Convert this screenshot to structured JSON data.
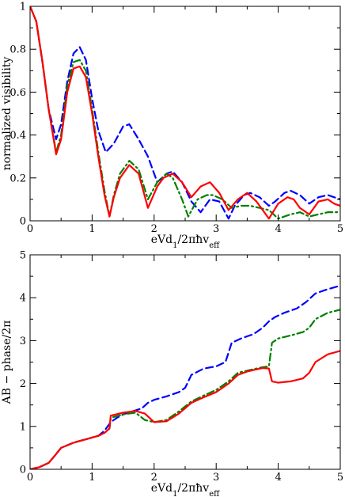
{
  "chart_data": [
    {
      "type": "line",
      "xlabel": "eVd₁/2πħvₑff",
      "ylabel": "normalized visibility",
      "xlim": [
        0,
        5
      ],
      "ylim": [
        0,
        1
      ],
      "xticks": [
        0,
        1,
        2,
        3,
        4,
        5
      ],
      "yticks": [
        0,
        0.2,
        0.4,
        0.6,
        0.8,
        1
      ],
      "ytick_labels": [
        "0",
        "0.2",
        "0.4",
        "0.6",
        "0.8",
        "1"
      ],
      "grid": false,
      "legend": "none",
      "series": [
        {
          "color": "#0000ff",
          "style": "dashed",
          "x": [
            0,
            0.1,
            0.2,
            0.3,
            0.42,
            0.5,
            0.6,
            0.7,
            0.8,
            0.9,
            1.0,
            1.1,
            1.22,
            1.35,
            1.5,
            1.6,
            1.75,
            1.9,
            2.05,
            2.2,
            2.3,
            2.45,
            2.6,
            2.75,
            2.9,
            3.05,
            3.2,
            3.3,
            3.45,
            3.55,
            3.7,
            3.85,
            3.95,
            4.1,
            4.2,
            4.35,
            4.5,
            4.65,
            4.8,
            4.9,
            5.0
          ],
          "y": [
            1.0,
            0.93,
            0.74,
            0.52,
            0.38,
            0.45,
            0.65,
            0.78,
            0.81,
            0.75,
            0.57,
            0.42,
            0.32,
            0.36,
            0.44,
            0.45,
            0.38,
            0.3,
            0.18,
            0.22,
            0.23,
            0.18,
            0.09,
            0.04,
            0.1,
            0.09,
            0.01,
            0.07,
            0.12,
            0.13,
            0.11,
            0.07,
            0.09,
            0.13,
            0.14,
            0.12,
            0.08,
            0.11,
            0.12,
            0.11,
            0.1
          ]
        },
        {
          "color": "#008000",
          "style": "dashdot",
          "x": [
            0,
            0.1,
            0.2,
            0.3,
            0.42,
            0.5,
            0.6,
            0.7,
            0.8,
            0.9,
            1.0,
            1.1,
            1.2,
            1.28,
            1.35,
            1.45,
            1.6,
            1.75,
            1.9,
            2.05,
            2.2,
            2.3,
            2.45,
            2.55,
            2.7,
            2.85,
            2.95,
            3.1,
            3.25,
            3.4,
            3.55,
            3.7,
            3.85,
            4.0,
            4.2,
            4.35,
            4.5,
            4.65,
            4.8,
            5.0
          ],
          "y": [
            1.0,
            0.93,
            0.74,
            0.52,
            0.32,
            0.4,
            0.63,
            0.74,
            0.75,
            0.7,
            0.52,
            0.32,
            0.14,
            0.02,
            0.12,
            0.22,
            0.28,
            0.24,
            0.1,
            0.18,
            0.22,
            0.2,
            0.1,
            0.02,
            0.1,
            0.12,
            0.12,
            0.1,
            0.06,
            0.07,
            0.07,
            0.06,
            0.05,
            0.01,
            0.03,
            0.04,
            0.02,
            0.03,
            0.04,
            0.04
          ]
        },
        {
          "color": "#ff0000",
          "style": "solid",
          "x": [
            0,
            0.1,
            0.2,
            0.3,
            0.42,
            0.5,
            0.6,
            0.7,
            0.8,
            0.9,
            1.0,
            1.1,
            1.2,
            1.28,
            1.35,
            1.45,
            1.6,
            1.75,
            1.9,
            2.05,
            2.15,
            2.3,
            2.45,
            2.6,
            2.75,
            2.9,
            3.05,
            3.2,
            3.35,
            3.5,
            3.65,
            3.85,
            4.0,
            4.15,
            4.25,
            4.35,
            4.5,
            4.65,
            4.8,
            4.9,
            5.0
          ],
          "y": [
            1.0,
            0.93,
            0.74,
            0.52,
            0.31,
            0.38,
            0.6,
            0.71,
            0.72,
            0.67,
            0.5,
            0.3,
            0.12,
            0.02,
            0.11,
            0.2,
            0.26,
            0.22,
            0.06,
            0.16,
            0.2,
            0.22,
            0.18,
            0.11,
            0.16,
            0.18,
            0.13,
            0.05,
            0.1,
            0.13,
            0.09,
            0.01,
            0.08,
            0.11,
            0.1,
            0.06,
            0.03,
            0.09,
            0.1,
            0.08,
            0.07
          ]
        }
      ]
    },
    {
      "type": "line",
      "xlabel": "eVd₁/2πħvₑff",
      "ylabel": "AB − phase/2π",
      "xlim": [
        0,
        5
      ],
      "ylim": [
        0,
        5
      ],
      "xticks": [
        0,
        1,
        2,
        3,
        4,
        5
      ],
      "yticks": [
        0,
        1,
        2,
        3,
        4,
        5
      ],
      "ytick_labels": [
        "0",
        "1",
        "2",
        "3",
        "4",
        "5"
      ],
      "grid": false,
      "legend": "none",
      "series": [
        {
          "color": "#0000ff",
          "style": "dashed",
          "x": [
            0,
            0.15,
            0.3,
            0.4,
            0.5,
            0.7,
            0.9,
            1.1,
            1.2,
            1.3,
            1.4,
            1.5,
            1.65,
            1.8,
            1.9,
            2.0,
            2.2,
            2.4,
            2.5,
            2.6,
            2.8,
            3.0,
            3.15,
            3.25,
            3.4,
            3.6,
            3.75,
            3.85,
            3.95,
            4.1,
            4.3,
            4.45,
            4.6,
            4.8,
            5.0
          ],
          "y": [
            0,
            0.05,
            0.15,
            0.32,
            0.5,
            0.62,
            0.7,
            0.78,
            0.9,
            1.1,
            1.2,
            1.28,
            1.35,
            1.42,
            1.55,
            1.62,
            1.7,
            1.8,
            1.9,
            2.2,
            2.35,
            2.4,
            2.5,
            2.95,
            3.05,
            3.15,
            3.3,
            3.45,
            3.55,
            3.65,
            3.75,
            3.9,
            4.1,
            4.2,
            4.28
          ]
        },
        {
          "color": "#008000",
          "style": "dashdot",
          "x": [
            0,
            0.15,
            0.3,
            0.4,
            0.5,
            0.7,
            0.9,
            1.1,
            1.2,
            1.28,
            1.3,
            1.5,
            1.7,
            1.85,
            2.0,
            2.2,
            2.4,
            2.6,
            2.8,
            3.0,
            3.2,
            3.35,
            3.5,
            3.65,
            3.75,
            3.85,
            3.9,
            4.0,
            4.2,
            4.4,
            4.5,
            4.6,
            4.8,
            5.0
          ],
          "y": [
            0,
            0.05,
            0.15,
            0.32,
            0.5,
            0.62,
            0.7,
            0.78,
            0.85,
            0.95,
            1.2,
            1.28,
            1.32,
            1.15,
            1.1,
            1.15,
            1.35,
            1.58,
            1.72,
            1.85,
            2.05,
            2.25,
            2.3,
            2.35,
            2.38,
            2.4,
            2.95,
            3.05,
            3.12,
            3.2,
            3.3,
            3.5,
            3.65,
            3.72
          ]
        },
        {
          "color": "#ff0000",
          "style": "solid",
          "x": [
            0,
            0.15,
            0.3,
            0.4,
            0.5,
            0.7,
            0.9,
            1.1,
            1.2,
            1.28,
            1.3,
            1.5,
            1.7,
            1.85,
            2.0,
            2.2,
            2.4,
            2.6,
            2.8,
            3.0,
            3.2,
            3.35,
            3.5,
            3.65,
            3.75,
            3.85,
            3.9,
            4.0,
            4.2,
            4.4,
            4.5,
            4.6,
            4.8,
            5.0
          ],
          "y": [
            0,
            0.05,
            0.15,
            0.32,
            0.5,
            0.62,
            0.7,
            0.78,
            0.85,
            0.95,
            1.25,
            1.32,
            1.36,
            1.3,
            1.1,
            1.12,
            1.3,
            1.55,
            1.68,
            1.8,
            2.0,
            2.2,
            2.28,
            2.33,
            2.36,
            2.35,
            2.05,
            2.02,
            2.05,
            2.12,
            2.25,
            2.5,
            2.68,
            2.76
          ]
        }
      ]
    }
  ]
}
